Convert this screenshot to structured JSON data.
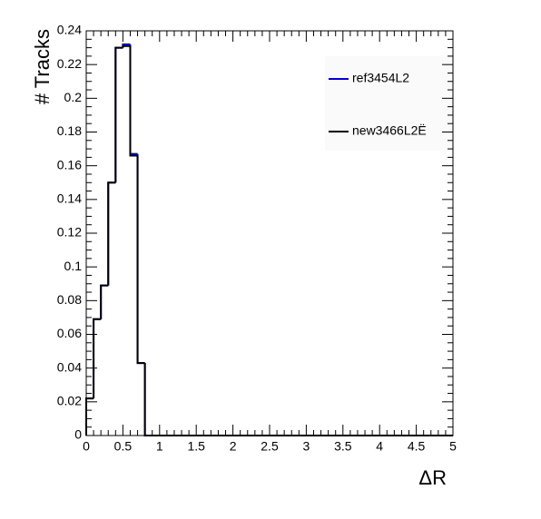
{
  "chart_data": {
    "type": "histogram",
    "x_label": "ΔR",
    "y_label": "# Tracks",
    "bins": [
      0,
      0.1,
      0.2,
      0.3,
      0.4,
      0.5,
      0.6,
      0.7,
      0.8,
      0.9,
      1,
      1.1,
      1.2,
      1.3,
      1.4,
      1.5,
      1.6,
      1.7,
      1.8,
      1.9,
      2,
      2.1,
      2.2,
      2.3,
      2.4,
      2.5,
      2.6,
      2.7,
      2.8,
      2.9,
      3,
      3.1,
      3.2,
      3.3,
      3.4,
      3.5,
      3.6,
      3.7,
      3.8,
      3.9,
      4,
      4.1,
      4.2,
      4.3,
      4.4,
      4.5,
      4.6,
      4.7,
      4.8,
      4.9,
      5
    ],
    "series": [
      {
        "name": "ref3454L2",
        "color": "#0000cc",
        "values": [
          0.022,
          0.069,
          0.089,
          0.15,
          0.23,
          0.232,
          0.167,
          0.043,
          0,
          0,
          0,
          0,
          0,
          0,
          0,
          0,
          0,
          0,
          0,
          0,
          0,
          0,
          0,
          0,
          0,
          0,
          0,
          0,
          0,
          0,
          0,
          0,
          0,
          0,
          0,
          0,
          0,
          0,
          0,
          0,
          0,
          0,
          0,
          0,
          0,
          0,
          0,
          0,
          0,
          0
        ]
      },
      {
        "name": "new3466L2Ë",
        "color": "#000000",
        "values": [
          0.022,
          0.069,
          0.089,
          0.15,
          0.23,
          0.231,
          0.166,
          0.043,
          0,
          0,
          0,
          0,
          0,
          0,
          0,
          0,
          0,
          0,
          0,
          0,
          0,
          0,
          0,
          0,
          0,
          0,
          0,
          0,
          0,
          0,
          0,
          0,
          0,
          0,
          0,
          0,
          0,
          0,
          0,
          0,
          0,
          0,
          0,
          0,
          0,
          0,
          0,
          0,
          0,
          0
        ]
      }
    ],
    "xlim": [
      0,
      5
    ],
    "ylim": [
      0,
      0.24
    ],
    "xticks": [
      0,
      0.5,
      1,
      1.5,
      2,
      2.5,
      3,
      3.5,
      4,
      4.5,
      5
    ],
    "yticks": [
      0,
      0.02,
      0.04,
      0.06,
      0.08,
      0.1,
      0.12,
      0.14,
      0.16,
      0.18,
      0.2,
      0.22,
      0.24
    ],
    "legend": "top-right"
  }
}
